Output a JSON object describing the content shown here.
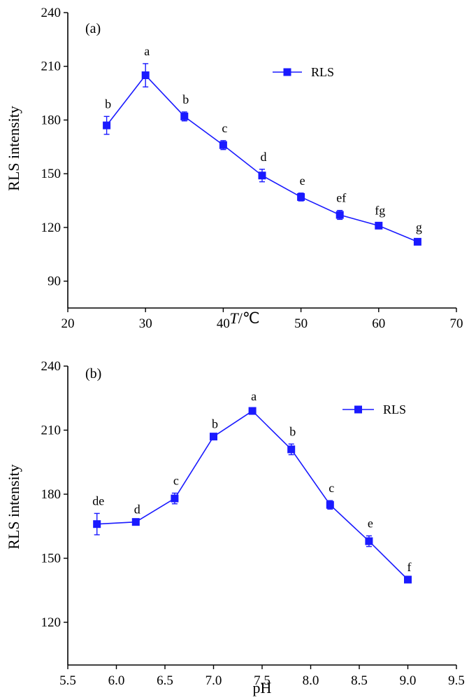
{
  "chart_data": [
    {
      "type": "line",
      "panel_label": "(a)",
      "xlabel_italic": "T",
      "xlabel_rest": "/℃",
      "ylabel": "RLS intensity",
      "xlim": [
        20,
        70
      ],
      "ylim": [
        75,
        240
      ],
      "xticks": [
        20,
        30,
        40,
        50,
        60,
        70
      ],
      "yticks": [
        90,
        120,
        150,
        180,
        210,
        240
      ],
      "legend": {
        "position": "top-right",
        "entries": [
          "RLS"
        ]
      },
      "series": [
        {
          "name": "RLS",
          "color": "#1a1aff",
          "x": [
            25,
            30,
            35,
            40,
            45,
            50,
            55,
            60,
            65
          ],
          "y": [
            177,
            205,
            182,
            166,
            149,
            137,
            127,
            121,
            112
          ],
          "err": [
            5,
            6.5,
            2.5,
            2.5,
            3.5,
            2.2,
            2.5,
            1.5,
            1.2
          ],
          "labels": [
            "b",
            "a",
            "b",
            "c",
            "d",
            "e",
            "ef",
            "fg",
            "g"
          ]
        }
      ]
    },
    {
      "type": "line",
      "panel_label": "(b)",
      "xlabel": "pH",
      "ylabel": "RLS intensity",
      "xlim": [
        5.5,
        9.5
      ],
      "ylim": [
        100,
        240
      ],
      "xticks": [
        "5.5",
        "6.0",
        "6.5",
        "7.0",
        "7.5",
        "8.0",
        "8.5",
        "9.0",
        "9.5"
      ],
      "yticks": [
        120,
        150,
        180,
        210,
        240
      ],
      "legend": {
        "position": "top-right",
        "entries": [
          "RLS"
        ]
      },
      "series": [
        {
          "name": "RLS",
          "color": "#1a1aff",
          "x": [
            5.8,
            6.2,
            6.6,
            7.0,
            7.4,
            7.8,
            8.2,
            8.6,
            9.0
          ],
          "y": [
            166,
            167,
            178,
            207,
            219,
            201,
            175,
            158,
            140
          ],
          "err": [
            5,
            0,
            2.5,
            0,
            1,
            2.5,
            2,
            2.5,
            0
          ],
          "labels": [
            "de",
            "d",
            "c",
            "b",
            "a",
            "b",
            "c",
            "e",
            "f"
          ]
        }
      ]
    }
  ]
}
